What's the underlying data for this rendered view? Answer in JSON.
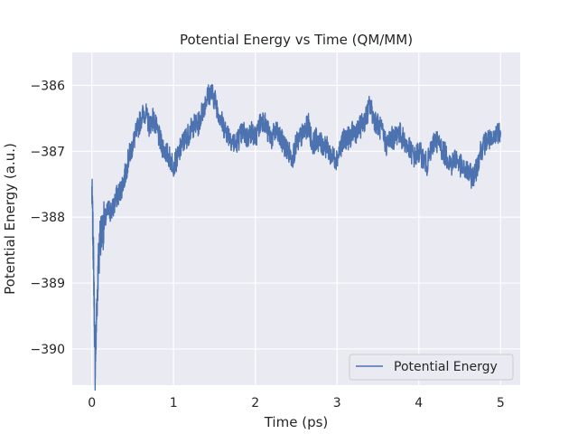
{
  "chart_data": {
    "type": "line",
    "title": "Potential Energy vs Time (QM/MM)",
    "xlabel": "Time (ps)",
    "ylabel": "Potential Energy (a.u.)",
    "xlim": [
      -0.24,
      5.24
    ],
    "ylim": [
      -390.55,
      -385.5
    ],
    "xticks": [
      0,
      1,
      2,
      3,
      4,
      5
    ],
    "xtick_labels": [
      "0",
      "1",
      "2",
      "3",
      "4",
      "5"
    ],
    "yticks": [
      -390,
      -389,
      -388,
      -387,
      -386
    ],
    "ytick_labels": [
      "−390",
      "−389",
      "−388",
      "−387",
      "−386"
    ],
    "grid": true,
    "legend_position": "lower-right",
    "series": [
      {
        "name": "Potential Energy",
        "color": "#4c72b0",
        "x": [
          0,
          0.02,
          0.04,
          0.06,
          0.08,
          0.1,
          0.15,
          0.2,
          0.25,
          0.3,
          0.35,
          0.4,
          0.45,
          0.5,
          0.55,
          0.6,
          0.65,
          0.7,
          0.75,
          0.8,
          0.85,
          0.9,
          0.95,
          1.0,
          1.05,
          1.1,
          1.15,
          1.2,
          1.25,
          1.3,
          1.35,
          1.4,
          1.45,
          1.5,
          1.55,
          1.6,
          1.65,
          1.7,
          1.75,
          1.8,
          1.85,
          1.9,
          1.95,
          2.0,
          2.05,
          2.1,
          2.15,
          2.2,
          2.25,
          2.3,
          2.35,
          2.4,
          2.45,
          2.5,
          2.55,
          2.6,
          2.65,
          2.7,
          2.75,
          2.8,
          2.85,
          2.9,
          2.95,
          3.0,
          3.05,
          3.1,
          3.15,
          3.2,
          3.25,
          3.3,
          3.35,
          3.4,
          3.45,
          3.5,
          3.55,
          3.6,
          3.65,
          3.7,
          3.75,
          3.8,
          3.85,
          3.9,
          3.95,
          4.0,
          4.05,
          4.1,
          4.15,
          4.2,
          4.25,
          4.3,
          4.35,
          4.4,
          4.45,
          4.5,
          4.55,
          4.6,
          4.65,
          4.7,
          4.75,
          4.8,
          4.85,
          4.9,
          4.95,
          5.0
        ],
        "y": [
          -387.6,
          -388.6,
          -390.3,
          -389.4,
          -388.7,
          -388.3,
          -388.1,
          -387.9,
          -387.9,
          -387.7,
          -387.6,
          -387.4,
          -387.1,
          -386.9,
          -386.7,
          -386.5,
          -386.4,
          -386.6,
          -386.5,
          -386.7,
          -386.9,
          -387.0,
          -387.1,
          -387.2,
          -387.1,
          -386.9,
          -386.8,
          -386.7,
          -386.6,
          -386.6,
          -386.4,
          -386.2,
          -386.1,
          -386.2,
          -386.4,
          -386.6,
          -386.7,
          -386.8,
          -386.9,
          -386.8,
          -386.7,
          -386.8,
          -386.7,
          -386.8,
          -386.6,
          -386.5,
          -386.7,
          -386.8,
          -386.7,
          -386.8,
          -386.9,
          -387.0,
          -387.1,
          -386.9,
          -386.8,
          -386.7,
          -386.6,
          -386.9,
          -386.8,
          -386.9,
          -386.9,
          -387.0,
          -387.1,
          -387.1,
          -386.9,
          -386.8,
          -386.8,
          -386.7,
          -386.7,
          -386.6,
          -386.5,
          -386.3,
          -386.5,
          -386.6,
          -386.7,
          -386.9,
          -386.8,
          -386.8,
          -386.7,
          -386.8,
          -386.9,
          -387.0,
          -387.1,
          -387.0,
          -387.1,
          -387.2,
          -387.0,
          -386.8,
          -386.9,
          -387.0,
          -387.1,
          -387.2,
          -387.1,
          -387.2,
          -387.3,
          -387.3,
          -387.4,
          -387.3,
          -387.0,
          -386.9,
          -386.8,
          -386.9,
          -386.7,
          -386.7
        ]
      }
    ]
  }
}
